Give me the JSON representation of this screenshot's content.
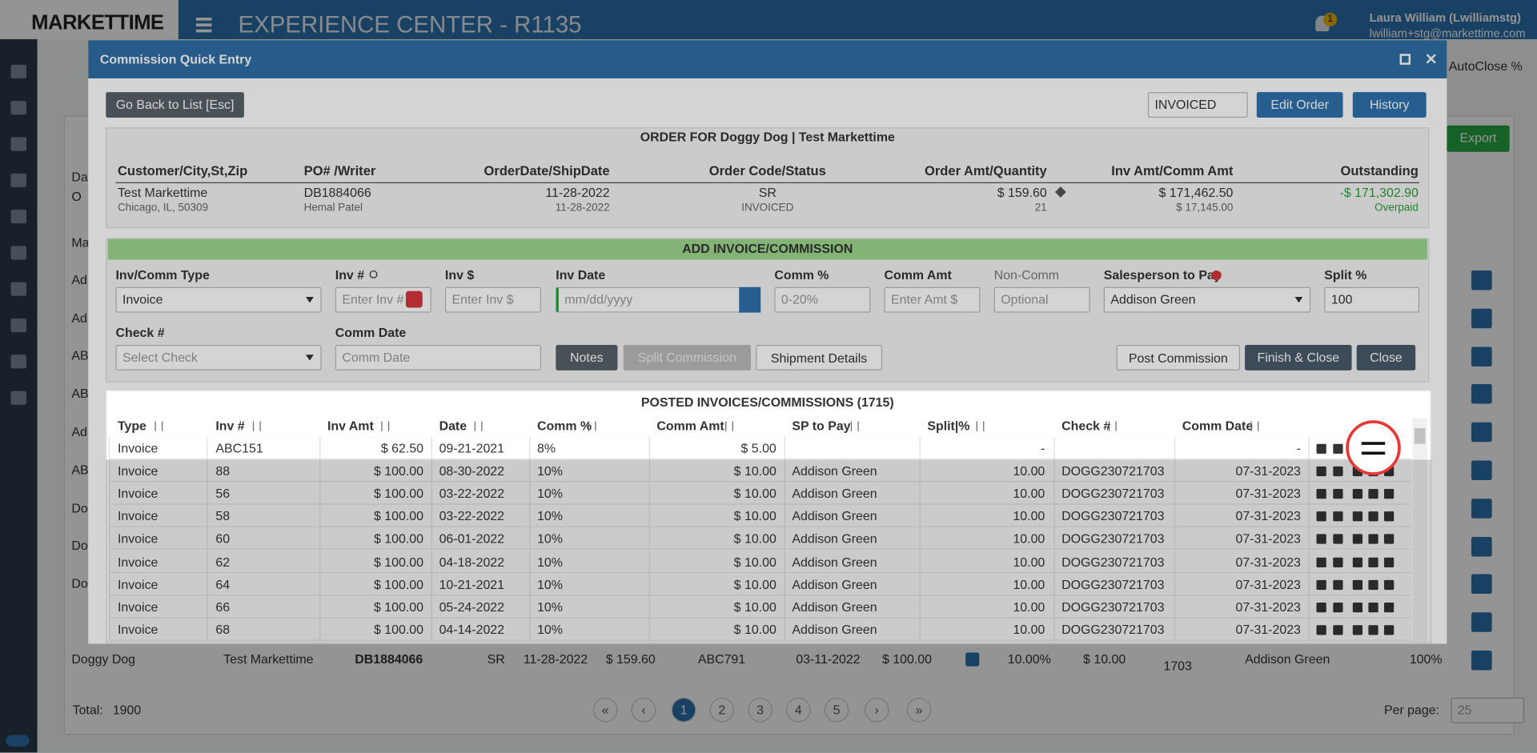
{
  "app": {
    "logo": "MARKETTIME",
    "title": "EXPERIENCE CENTER - R1135",
    "notifications": "1",
    "user_name": "Laura William (Lwilliamstg)",
    "user_email": "lwilliam+stg@markettime.com",
    "autoclose_label": "AutoClose %",
    "export_button": "Export"
  },
  "background": {
    "left_fragments": [
      "Da",
      "O",
      "Ma",
      "Ad",
      "Ad",
      "AB",
      "AB",
      "Ad",
      "AB",
      "Do",
      "Do",
      "Do"
    ],
    "row": [
      "Doggy Dog",
      "Test Markettime",
      "DB1884066",
      "SR",
      "11-28-2022",
      "$ 159.60",
      "ABC791",
      "03-11-2022",
      "$ 100.00",
      "10.00%",
      "$ 10.00",
      "1703",
      "Addison Green",
      "100%"
    ],
    "total_label": "Total:",
    "total": "1900",
    "pages": [
      "«",
      "‹",
      "1",
      "2",
      "3",
      "4",
      "5",
      "›",
      "»"
    ],
    "per_page_label": "Per page:",
    "per_page": "25"
  },
  "modal": {
    "title": "Commission Quick Entry",
    "back_button": "Go Back to List [Esc]",
    "status": "INVOICED",
    "edit_button": "Edit Order",
    "history_button": "History",
    "order": {
      "heading": "ORDER FOR Doggy Dog | Test Markettime",
      "columns": [
        {
          "header": "Customer/City,St,Zip",
          "line1": "Test Markettime",
          "line2": "Chicago, IL, 50309"
        },
        {
          "header": "PO# /Writer",
          "line1": "DB1884066",
          "line2": "Hemal Patel"
        },
        {
          "header": "OrderDate/ShipDate",
          "line1": "11-28-2022",
          "line2": "11-28-2022"
        },
        {
          "header": "Order Code/Status",
          "line1": "SR",
          "line2": "INVOICED"
        },
        {
          "header": "Order Amt/Quantity",
          "line1": "$ 159.60",
          "line2": "21"
        },
        {
          "header": "Inv Amt/Comm Amt",
          "line1": "$ 171,462.50",
          "line2": "$ 17,145.00"
        },
        {
          "header": "Outstanding",
          "line1": "-$ 171,302.90",
          "line2": "Overpaid"
        }
      ]
    },
    "add": {
      "heading": "ADD INVOICE/COMMISSION",
      "fields": [
        {
          "label": "Inv/Comm Type",
          "value": "Invoice"
        },
        {
          "label": "Inv #",
          "value": "Enter Inv #"
        },
        {
          "label": "Inv $",
          "value": "Enter Inv $"
        },
        {
          "label": "Inv Date",
          "value": "mm/dd/yyyy"
        },
        {
          "label": "Comm %",
          "value": "0-20%"
        },
        {
          "label": "Comm Amt",
          "value": "Enter Amt $"
        },
        {
          "label": "Non-Comm",
          "value": "Optional"
        },
        {
          "label": "Salesperson to Pay",
          "value": "Addison Green"
        },
        {
          "label": "Split %",
          "value": "100"
        },
        {
          "label": "Check #",
          "value": "Select Check"
        },
        {
          "label": "Comm Date",
          "value": "Comm Date"
        }
      ],
      "buttons": [
        "Notes",
        "Split Commission",
        "Shipment Details",
        "Post Commission",
        "Finish & Close",
        "Close"
      ]
    },
    "posted": {
      "heading": "POSTED INVOICES/COMMISSIONS (1715)",
      "columns": [
        "Type",
        "Inv #",
        "Inv Amt",
        "Date",
        "Comm %",
        "Comm Amt",
        "SP to Pay",
        "Split|%",
        "Check #",
        "Comm Date"
      ],
      "rows": [
        [
          "Invoice",
          "ABC151",
          "$ 62.50",
          "09-21-2021",
          "8%",
          "$ 5.00",
          "",
          "-",
          "",
          "-"
        ],
        [
          "Invoice",
          "88",
          "$ 100.00",
          "08-30-2022",
          "10%",
          "$ 10.00",
          "Addison Green",
          "10.00",
          "DOGG230721703",
          "07-31-2023"
        ],
        [
          "Invoice",
          "56",
          "$ 100.00",
          "03-22-2022",
          "10%",
          "$ 10.00",
          "Addison Green",
          "10.00",
          "DOGG230721703",
          "07-31-2023"
        ],
        [
          "Invoice",
          "58",
          "$ 100.00",
          "03-22-2022",
          "10%",
          "$ 10.00",
          "Addison Green",
          "10.00",
          "DOGG230721703",
          "07-31-2023"
        ],
        [
          "Invoice",
          "60",
          "$ 100.00",
          "06-01-2022",
          "10%",
          "$ 10.00",
          "Addison Green",
          "10.00",
          "DOGG230721703",
          "07-31-2023"
        ],
        [
          "Invoice",
          "62",
          "$ 100.00",
          "04-18-2022",
          "10%",
          "$ 10.00",
          "Addison Green",
          "10.00",
          "DOGG230721703",
          "07-31-2023"
        ],
        [
          "Invoice",
          "64",
          "$ 100.00",
          "10-21-2021",
          "10%",
          "$ 10.00",
          "Addison Green",
          "10.00",
          "DOGG230721703",
          "07-31-2023"
        ],
        [
          "Invoice",
          "66",
          "$ 100.00",
          "05-24-2022",
          "10%",
          "$ 10.00",
          "Addison Green",
          "10.00",
          "DOGG230721703",
          "07-31-2023"
        ],
        [
          "Invoice",
          "68",
          "$ 100.00",
          "04-14-2022",
          "10%",
          "$ 10.00",
          "Addison Green",
          "10.00",
          "DOGG230721703",
          "07-31-2023"
        ]
      ]
    }
  }
}
